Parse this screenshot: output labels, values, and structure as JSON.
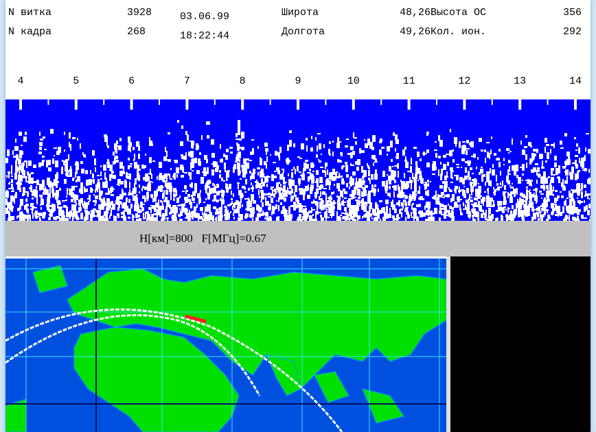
{
  "header": {
    "rows": [
      [
        "N витка",
        "3928",
        "03.06.99",
        "Широта",
        "48,26",
        "Высота ОС",
        "356"
      ],
      [
        "N кадра",
        "268",
        "18:22:44",
        "Долгота",
        "49,26",
        "Кол. ион.",
        "292"
      ]
    ]
  },
  "scale": [
    "4",
    "5",
    "6",
    "7",
    "8",
    "9",
    "10",
    "11",
    "12",
    "13",
    "14"
  ],
  "status": "H[км]=800   F[МГц]=0.67"
}
